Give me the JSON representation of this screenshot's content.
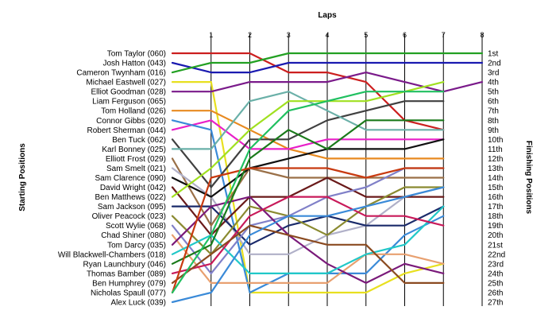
{
  "chart_data": {
    "type": "line",
    "title": "Laps",
    "ylabel": "Starting Positions",
    "y2label": "Finishing Positions",
    "x": [
      0,
      1,
      2,
      3,
      4,
      5,
      6,
      7,
      8
    ],
    "x_tick_labels": [
      "1",
      "2",
      "3",
      "4",
      "5",
      "6",
      "7",
      "8"
    ],
    "y_reversed": true,
    "ylim": [
      1,
      27
    ],
    "grid": "vertical",
    "finishing_labels": [
      "1st",
      "2nd",
      "3rd",
      "4th",
      "5th",
      "6th",
      "7th",
      "8th",
      "9th",
      "10th",
      "11th",
      "12th",
      "13th",
      "14th",
      "15th",
      "16th",
      "17th",
      "18th",
      "19th",
      "20th",
      "21st",
      "22nd",
      "23rd",
      "24th",
      "25th",
      "26th",
      "27th"
    ],
    "series": [
      {
        "name": "Tom Taylor (060)",
        "color": "#cc1f1f",
        "values": [
          1,
          1,
          1,
          3,
          3,
          4,
          8,
          9,
          null
        ]
      },
      {
        "name": "Josh Hatton (043)",
        "color": "#1a1ab0",
        "values": [
          2,
          3,
          3,
          2,
          2,
          2,
          2,
          2,
          2
        ]
      },
      {
        "name": "Cameron Twynham (016)",
        "color": "#22a022",
        "values": [
          3,
          2,
          2,
          1,
          1,
          1,
          1,
          1,
          1
        ]
      },
      {
        "name": "Michael Eastwell (027)",
        "color": "#e8e020",
        "values": [
          4,
          4,
          26,
          26,
          26,
          26,
          24,
          23,
          null
        ]
      },
      {
        "name": "Elliot Goodman (028)",
        "color": "#7a1a8a",
        "values": [
          5,
          5,
          4,
          4,
          4,
          3,
          4,
          5,
          4
        ]
      },
      {
        "name": "Liam Ferguson (065)",
        "color": "#e88a20",
        "values": [
          7,
          7,
          9,
          11,
          12,
          12,
          12,
          12,
          null
        ]
      },
      {
        "name": "Tom Holland (026)",
        "color": "#e820c8",
        "values": [
          9,
          8,
          11,
          11,
          10,
          10,
          10,
          10,
          null
        ]
      },
      {
        "name": "Connor Gibbs (020)",
        "color": "#3a8ad8",
        "values": [
          8,
          9,
          26,
          24,
          24,
          24,
          20,
          18,
          null
        ]
      },
      {
        "name": "Robert Sherman (044)",
        "color": "#404040",
        "values": [
          10,
          15,
          10,
          10,
          8,
          7,
          6,
          6,
          null
        ]
      },
      {
        "name": "Ben Tuck (062)",
        "color": "#6ab0a8",
        "values": [
          11,
          11,
          6,
          5,
          7,
          9,
          9,
          9,
          null
        ]
      },
      {
        "name": "Karl Bonney (025)",
        "color": "#9a7048",
        "values": [
          12,
          19,
          13,
          14,
          14,
          14,
          14,
          14,
          null
        ]
      },
      {
        "name": "Elliott Frost (029)",
        "color": "#b0b0c8",
        "values": [
          13,
          16,
          22,
          22,
          20,
          19,
          16,
          15,
          null
        ]
      },
      {
        "name": "Sam Smelt (021)",
        "color": "#101010",
        "values": [
          14,
          16,
          13,
          12,
          11,
          11,
          11,
          10,
          null
        ]
      },
      {
        "name": "Sam Clarence (090)",
        "color": "#6a1a1a",
        "values": [
          15,
          20,
          16,
          16,
          14,
          16,
          16,
          16,
          null
        ]
      },
      {
        "name": "David Wright (042)",
        "color": "#a0e020",
        "values": [
          16,
          13,
          9,
          6,
          6,
          6,
          5,
          4,
          null
        ]
      },
      {
        "name": "Ben Matthews (022)",
        "color": "#1a2a6a",
        "values": [
          17,
          17,
          21,
          19,
          18,
          19,
          19,
          17,
          null
        ]
      },
      {
        "name": "Sam Jackson (095)",
        "color": "#8a8a30",
        "values": [
          18,
          22,
          17,
          18,
          20,
          17,
          15,
          15,
          null
        ]
      },
      {
        "name": "Oliver Peacock (023)",
        "color": "#8080c8",
        "values": [
          19,
          24,
          19,
          18,
          16,
          15,
          13,
          13,
          null
        ]
      },
      {
        "name": "Scott Wylie (068)",
        "color": "#e8a070",
        "values": [
          20,
          25,
          25,
          25,
          25,
          22,
          22,
          23,
          null
        ]
      },
      {
        "name": "Chad Shiner (080)",
        "color": "#7a1a7a",
        "values": [
          21,
          17,
          16,
          20,
          23,
          25,
          23,
          24,
          null
        ]
      },
      {
        "name": "Tom Darcy (035)",
        "color": "#20c8c8",
        "values": [
          22,
          20,
          24,
          24,
          24,
          22,
          21,
          17,
          null
        ]
      },
      {
        "name": "Will Blackwell-Chambers (018)",
        "color": "#1a7a1a",
        "values": [
          23,
          21,
          12,
          9,
          11,
          8,
          8,
          8,
          null
        ]
      },
      {
        "name": "Ryan Launchbury (046)",
        "color": "#c81a5a",
        "values": [
          24,
          23,
          18,
          16,
          16,
          18,
          18,
          19,
          null
        ]
      },
      {
        "name": "Thomas Bamber (089)",
        "color": "#8a4a20",
        "values": [
          25,
          22,
          19,
          20,
          21,
          21,
          25,
          25,
          null
        ]
      },
      {
        "name": "Ben Humphrey (079)",
        "color": "#c83a10",
        "values": [
          26,
          14,
          13,
          13,
          13,
          14,
          13,
          13,
          null
        ]
      },
      {
        "name": "Nicholas Spaull (077)",
        "color": "#20c060",
        "values": [
          26,
          20,
          11,
          7,
          6,
          5,
          5,
          5,
          null
        ]
      },
      {
        "name": "Alex Luck (039)",
        "color": "#3a8ad8",
        "values": [
          27,
          26,
          20,
          18,
          18,
          17,
          16,
          15,
          null
        ]
      }
    ]
  }
}
